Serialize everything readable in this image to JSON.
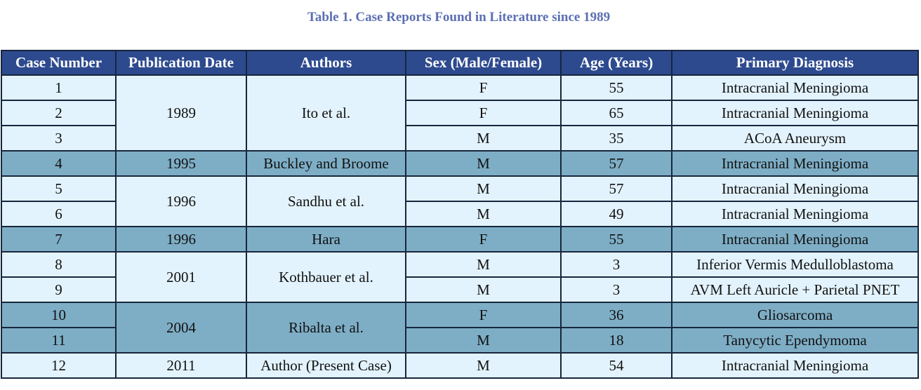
{
  "title": "Table 1. Case Reports Found in Literature since 1989",
  "columns": [
    "Case Number",
    "Publication Date",
    "Authors",
    "Sex (Male/Female)",
    "Age (Years)",
    "Primary Diagnosis"
  ],
  "groups": [
    {
      "date": "1989",
      "authors": "Ito et al.",
      "cases": [
        {
          "case": "1",
          "sex": "F",
          "age": "55",
          "diagnosis": "Intracranial Meningioma"
        },
        {
          "case": "2",
          "sex": "F",
          "age": "65",
          "diagnosis": "Intracranial Meningioma"
        },
        {
          "case": "3",
          "sex": "M",
          "age": "35",
          "diagnosis": "ACoA Aneurysm"
        }
      ]
    },
    {
      "date": "1995",
      "authors": "Buckley and Broome",
      "cases": [
        {
          "case": "4",
          "sex": "M",
          "age": "57",
          "diagnosis": "Intracranial Meningioma"
        }
      ]
    },
    {
      "date": "1996",
      "authors": "Sandhu et al.",
      "cases": [
        {
          "case": "5",
          "sex": "M",
          "age": "57",
          "diagnosis": "Intracranial Meningioma"
        },
        {
          "case": "6",
          "sex": "M",
          "age": "49",
          "diagnosis": "Intracranial Meningioma"
        }
      ]
    },
    {
      "date": "1996",
      "authors": "Hara",
      "cases": [
        {
          "case": "7",
          "sex": "F",
          "age": "55",
          "diagnosis": "Intracranial Meningioma"
        }
      ]
    },
    {
      "date": "2001",
      "authors": "Kothbauer et al.",
      "cases": [
        {
          "case": "8",
          "sex": "M",
          "age": "3",
          "diagnosis": "Inferior Vermis Medulloblastoma"
        },
        {
          "case": "9",
          "sex": "M",
          "age": "3",
          "diagnosis": "AVM Left Auricle + Parietal PNET"
        }
      ]
    },
    {
      "date": "2004",
      "authors": "Ribalta et al.",
      "cases": [
        {
          "case": "10",
          "sex": "F",
          "age": "36",
          "diagnosis": "Gliosarcoma"
        },
        {
          "case": "11",
          "sex": "M",
          "age": "18",
          "diagnosis": "Tanycytic Ependymoma"
        }
      ]
    },
    {
      "date": "2011",
      "authors": "Author (Present Case)",
      "cases": [
        {
          "case": "12",
          "sex": "M",
          "age": "54",
          "diagnosis": "Intracranial Meningioma"
        }
      ]
    }
  ],
  "colors": {
    "title": "#5b6fb3",
    "header_bg": "#2d4a8f",
    "row_light": "#e3f3fd",
    "row_dark": "#7eaec6",
    "border": "#17263d"
  }
}
